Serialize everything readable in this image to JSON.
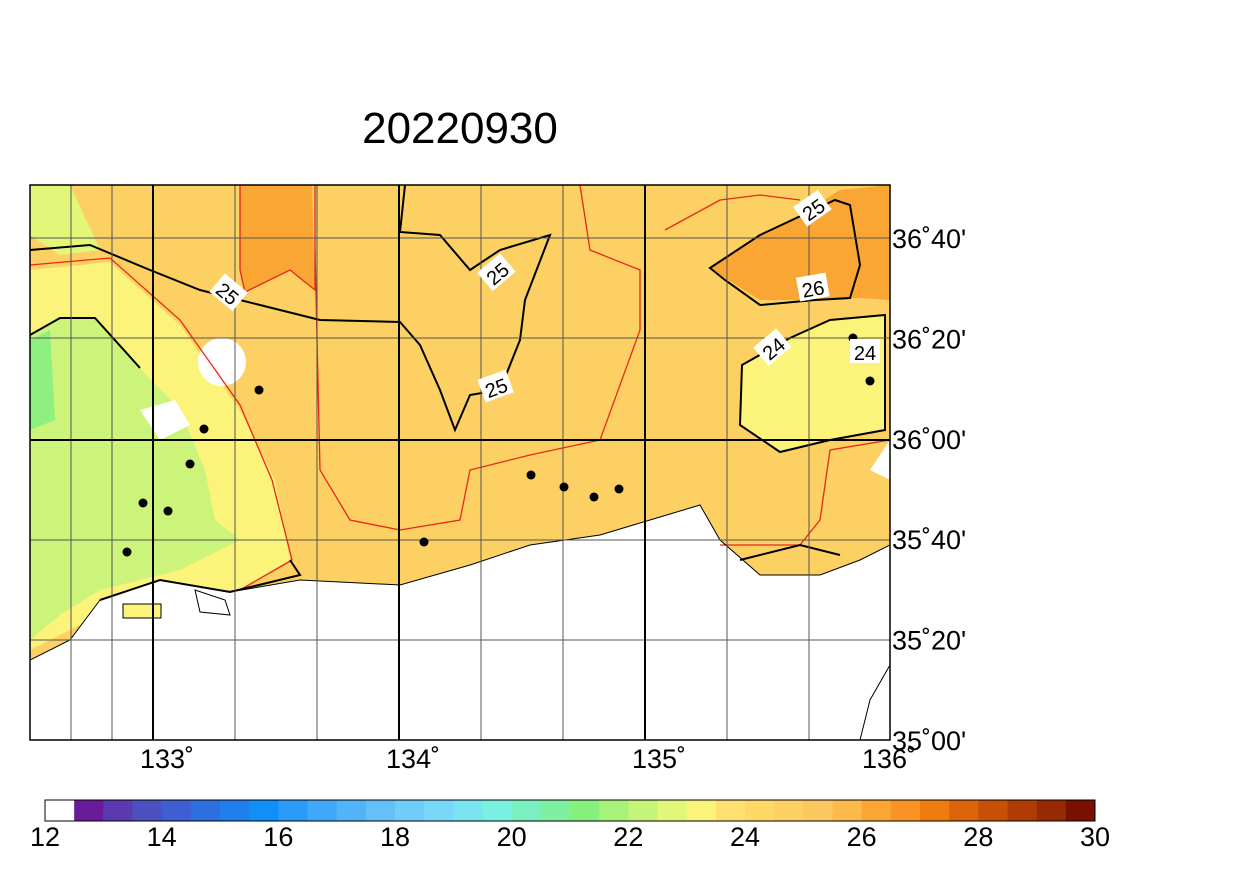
{
  "title": "20220930",
  "longitude_labels": [
    "133˚",
    "134˚",
    "135˚",
    "136˚"
  ],
  "latitude_labels": [
    "36˚40'",
    "36˚20'",
    "36˚00'",
    "35˚40'",
    "35˚20'",
    "35˚00'"
  ],
  "contour_labels": [
    "25",
    "25",
    "25",
    "25",
    "26",
    "24",
    "24"
  ],
  "colorbar": {
    "range": [
      12,
      30
    ],
    "ticks": [
      12,
      14,
      16,
      18,
      20,
      22,
      24,
      26,
      28,
      30
    ],
    "colors": [
      "#ffffff",
      "#6a1b9a",
      "#5b3ab0",
      "#4c4fc0",
      "#3d5fd2",
      "#2e6fe0",
      "#1f7fee",
      "#0f8ff8",
      "#2a9bf8",
      "#3fa8f8",
      "#52b4f8",
      "#63c0f8",
      "#70ccf8",
      "#78d8f8",
      "#7ae4f0",
      "#7af0e0",
      "#7af0c0",
      "#7ef0a0",
      "#86f07e",
      "#a6f27a",
      "#c6f47a",
      "#e2f67a",
      "#fbf47a",
      "#fde070",
      "#fdd866",
      "#fcd062",
      "#fbc860",
      "#fbba4a",
      "#faa634",
      "#f99424",
      "#f07c10",
      "#dd6408",
      "#c85006",
      "#b03c04",
      "#962a02",
      "#7a1000"
    ]
  }
}
